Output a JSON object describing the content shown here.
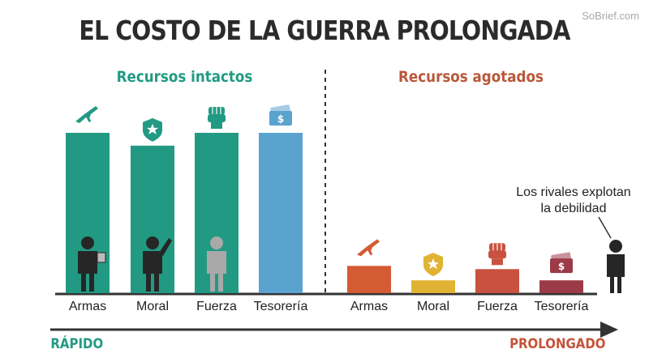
{
  "title": "EL COSTO DE LA GUERRA PROLONGADA",
  "watermark": "SoBrief.com",
  "colors": {
    "teal": "#229a83",
    "blue": "#5aa3cf",
    "orange": "#d45b33",
    "yellow": "#e0b334",
    "red": "#c9513f",
    "maroon": "#9c3b48",
    "figure_dark": "#262626",
    "figure_gray": "#a9a9a9",
    "axis": "#333333"
  },
  "chart_data": {
    "type": "bar",
    "ylim": [
      0,
      100
    ],
    "groups": [
      {
        "name": "Recursos intactos",
        "name_color": "#229a83",
        "categories": [
          "Armas",
          "Moral",
          "Fuerza",
          "Tesorería"
        ],
        "values": [
          100,
          92,
          100,
          100
        ],
        "colors": [
          "#229a83",
          "#229a83",
          "#229a83",
          "#5aa3cf"
        ],
        "icons": [
          "rifle-icon",
          "shield-star-icon",
          "fist-icon",
          "money-icon"
        ],
        "figures": [
          "person-reading-icon",
          "person-waving-icon",
          "person-standing-gray-icon",
          null
        ]
      },
      {
        "name": "Recursos agotados",
        "name_color": "#b9573a",
        "categories": [
          "Armas",
          "Moral",
          "Fuerza",
          "Tesorería"
        ],
        "values": [
          17,
          8,
          15,
          8
        ],
        "colors": [
          "#d45b33",
          "#e0b334",
          "#c9513f",
          "#9c3b48"
        ],
        "icons": [
          "rifle-icon",
          "shield-star-icon",
          "fist-icon",
          "money-icon"
        ],
        "figures": [
          null,
          null,
          null,
          null
        ]
      }
    ],
    "x_axis": {
      "start_label": "RÁPIDO",
      "end_label": "PROLONGADO"
    },
    "annotation": {
      "line1": "Los rivales explotan",
      "line2": "la debilidad"
    }
  }
}
